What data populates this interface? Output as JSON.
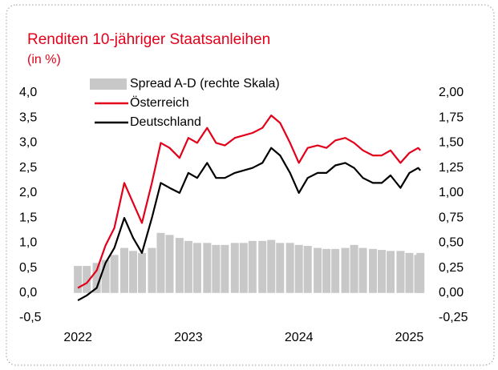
{
  "chart_data": {
    "type": "line",
    "title": "Renditen 10-jähriger Staatsanleihen",
    "subtitle": "(in %)",
    "x": [
      2022.0,
      2022.08,
      2022.17,
      2022.25,
      2022.33,
      2022.42,
      2022.5,
      2022.58,
      2022.67,
      2022.75,
      2022.83,
      2022.92,
      2023.0,
      2023.08,
      2023.17,
      2023.25,
      2023.33,
      2023.42,
      2023.5,
      2023.58,
      2023.67,
      2023.75,
      2023.83,
      2023.92,
      2024.0,
      2024.08,
      2024.17,
      2024.25,
      2024.33,
      2024.42,
      2024.5,
      2024.58,
      2024.67,
      2024.75,
      2024.83,
      2024.92,
      2025.0,
      2025.08,
      2025.1
    ],
    "series": [
      {
        "name": "Spread A-D (rechte Skala)",
        "color": "#c8c8c8",
        "axis": "y2",
        "kind": "bar",
        "values": [
          0.27,
          0.27,
          0.3,
          0.33,
          0.38,
          0.45,
          0.42,
          0.4,
          0.45,
          0.6,
          0.58,
          0.55,
          0.52,
          0.5,
          0.5,
          0.48,
          0.48,
          0.5,
          0.5,
          0.52,
          0.52,
          0.53,
          0.5,
          0.5,
          0.48,
          0.47,
          0.45,
          0.44,
          0.44,
          0.45,
          0.48,
          0.45,
          0.44,
          0.43,
          0.42,
          0.42,
          0.4,
          0.38,
          0.4
        ]
      },
      {
        "name": "Österreich",
        "color": "#e2001a",
        "values": [
          0.1,
          0.2,
          0.45,
          0.95,
          1.3,
          2.2,
          1.8,
          1.4,
          2.2,
          3.0,
          2.9,
          2.7,
          3.1,
          3.0,
          3.3,
          3.0,
          2.95,
          3.1,
          3.15,
          3.2,
          3.3,
          3.55,
          3.4,
          3.0,
          2.6,
          2.9,
          2.95,
          2.9,
          3.05,
          3.1,
          3.0,
          2.85,
          2.75,
          2.75,
          2.85,
          2.6,
          2.8,
          2.9,
          2.85
        ]
      },
      {
        "name": "Deutschland",
        "color": "#000000",
        "values": [
          -0.15,
          -0.05,
          0.1,
          0.6,
          0.9,
          1.5,
          1.1,
          0.8,
          1.5,
          2.2,
          2.1,
          2.0,
          2.4,
          2.3,
          2.6,
          2.3,
          2.3,
          2.4,
          2.45,
          2.5,
          2.6,
          2.9,
          2.75,
          2.4,
          2.0,
          2.3,
          2.4,
          2.4,
          2.55,
          2.6,
          2.5,
          2.3,
          2.2,
          2.2,
          2.35,
          2.1,
          2.4,
          2.5,
          2.45
        ]
      }
    ],
    "xlim": [
      2021.97,
      2025.12
    ],
    "xticks": [
      2022,
      2023,
      2024,
      2025
    ],
    "ylim": [
      -0.5,
      4.0
    ],
    "yticks": [
      {
        "value": -0.5,
        "label": "-0,5"
      },
      {
        "value": 0,
        "label": "0,0"
      },
      {
        "value": 0.5,
        "label": "0,5"
      },
      {
        "value": 1,
        "label": "1,0"
      },
      {
        "value": 1.5,
        "label": "1,5"
      },
      {
        "value": 2,
        "label": "2,0"
      },
      {
        "value": 2.5,
        "label": "2,5"
      },
      {
        "value": 3,
        "label": "3,0"
      },
      {
        "value": 3.5,
        "label": "3,5"
      },
      {
        "value": 4,
        "label": "4,0"
      }
    ],
    "y2lim": [
      -0.25,
      2.0
    ],
    "y2ticks": [
      {
        "value": -0.25,
        "label": "-0,25"
      },
      {
        "value": 0,
        "label": "0,00"
      },
      {
        "value": 0.25,
        "label": "0,25"
      },
      {
        "value": 0.5,
        "label": "0,50"
      },
      {
        "value": 0.75,
        "label": "0,75"
      },
      {
        "value": 1,
        "label": "1,00"
      },
      {
        "value": 1.25,
        "label": "1,25"
      },
      {
        "value": 1.5,
        "label": "1,50"
      },
      {
        "value": 1.75,
        "label": "1,75"
      },
      {
        "value": 2,
        "label": "2,00"
      }
    ],
    "grid": false
  }
}
